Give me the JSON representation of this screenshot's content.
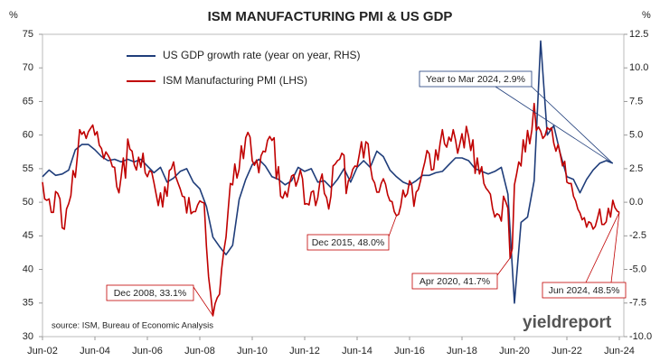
{
  "chart_data": {
    "type": "line",
    "title": "ISM MANUFACTURING PMI & US GDP",
    "ylabel": "%",
    "y2label": "%",
    "source": "source: ISM, Bureau of Economic Analysis",
    "logo": "yieldreport",
    "x": [
      "Jun-02",
      "Jul-02",
      "Aug-02",
      "Sep-02",
      "Oct-02",
      "Nov-02",
      "Dec-02",
      "Jan-03",
      "Feb-03",
      "Mar-03",
      "Apr-03",
      "May-03",
      "Jun-03",
      "Jul-03",
      "Aug-03",
      "Sep-03",
      "Oct-03",
      "Nov-03",
      "Dec-03",
      "Jan-04",
      "Feb-04",
      "Mar-04",
      "Apr-04",
      "May-04",
      "Jun-04",
      "Jul-04",
      "Aug-04",
      "Sep-04",
      "Oct-04",
      "Nov-04",
      "Dec-04",
      "Jan-05",
      "Feb-05",
      "Mar-05",
      "Apr-05",
      "May-05",
      "Jun-05",
      "Jul-05",
      "Aug-05",
      "Sep-05",
      "Oct-05",
      "Nov-05",
      "Dec-05",
      "Jan-06",
      "Feb-06",
      "Mar-06",
      "Apr-06",
      "May-06",
      "Jun-06",
      "Jul-06",
      "Aug-06",
      "Sep-06",
      "Oct-06",
      "Nov-06",
      "Dec-06",
      "Jan-07",
      "Feb-07",
      "Mar-07",
      "Apr-07",
      "May-07",
      "Jun-07",
      "Jul-07",
      "Aug-07",
      "Sep-07",
      "Oct-07",
      "Nov-07",
      "Dec-07",
      "Jan-08",
      "Feb-08",
      "Mar-08",
      "Apr-08",
      "May-08",
      "Jun-08",
      "Jul-08",
      "Aug-08",
      "Sep-08",
      "Oct-08",
      "Nov-08",
      "Dec-08",
      "Jan-09",
      "Feb-09",
      "Mar-09",
      "Apr-09",
      "May-09",
      "Jun-09",
      "Jul-09",
      "Aug-09",
      "Sep-09",
      "Oct-09",
      "Nov-09",
      "Dec-09",
      "Jan-10",
      "Feb-10",
      "Mar-10",
      "Apr-10",
      "May-10",
      "Jun-10",
      "Jul-10",
      "Aug-10",
      "Sep-10",
      "Oct-10",
      "Nov-10",
      "Dec-10",
      "Jan-11",
      "Feb-11",
      "Mar-11",
      "Apr-11",
      "May-11",
      "Jun-11",
      "Jul-11",
      "Aug-11",
      "Sep-11",
      "Oct-11",
      "Nov-11",
      "Dec-11",
      "Jan-12",
      "Feb-12",
      "Mar-12",
      "Apr-12",
      "May-12",
      "Jun-12",
      "Jul-12",
      "Aug-12",
      "Sep-12",
      "Oct-12",
      "Nov-12",
      "Dec-12",
      "Jan-13",
      "Feb-13",
      "Mar-13",
      "Apr-13",
      "May-13",
      "Jun-13",
      "Jul-13",
      "Aug-13",
      "Sep-13",
      "Oct-13",
      "Nov-13",
      "Dec-13",
      "Jan-14",
      "Feb-14",
      "Mar-14",
      "Apr-14",
      "May-14",
      "Jun-14",
      "Jul-14",
      "Aug-14",
      "Sep-14",
      "Oct-14",
      "Nov-14",
      "Dec-14",
      "Jan-15",
      "Feb-15",
      "Mar-15",
      "Apr-15",
      "May-15",
      "Jun-15",
      "Jul-15",
      "Aug-15",
      "Sep-15",
      "Oct-15",
      "Nov-15",
      "Dec-15",
      "Jan-16",
      "Feb-16",
      "Mar-16",
      "Apr-16",
      "May-16",
      "Jun-16",
      "Jul-16",
      "Aug-16",
      "Sep-16",
      "Oct-16",
      "Nov-16",
      "Dec-16",
      "Jan-17",
      "Feb-17",
      "Mar-17",
      "Apr-17",
      "May-17",
      "Jun-17",
      "Jul-17",
      "Aug-17",
      "Sep-17",
      "Oct-17",
      "Nov-17",
      "Dec-17",
      "Jan-18",
      "Feb-18",
      "Mar-18",
      "Apr-18",
      "May-18",
      "Jun-18",
      "Jul-18",
      "Aug-18",
      "Sep-18",
      "Oct-18",
      "Nov-18",
      "Dec-18",
      "Jan-19",
      "Feb-19",
      "Mar-19",
      "Apr-19",
      "May-19",
      "Jun-19",
      "Jul-19",
      "Aug-19",
      "Sep-19",
      "Oct-19",
      "Nov-19",
      "Dec-19",
      "Jan-20",
      "Feb-20",
      "Mar-20",
      "Apr-20",
      "May-20",
      "Jun-20",
      "Jul-20",
      "Aug-20",
      "Sep-20",
      "Oct-20",
      "Nov-20",
      "Dec-20",
      "Jan-21",
      "Feb-21",
      "Mar-21",
      "Apr-21",
      "May-21",
      "Jun-21",
      "Jul-21",
      "Aug-21",
      "Sep-21",
      "Oct-21",
      "Nov-21",
      "Dec-21",
      "Jan-22",
      "Feb-22",
      "Mar-22",
      "Apr-22",
      "May-22",
      "Jun-22",
      "Jul-22",
      "Aug-22",
      "Sep-22",
      "Oct-22",
      "Nov-22",
      "Dec-22",
      "Jan-23",
      "Feb-23",
      "Mar-23",
      "Apr-23",
      "May-23",
      "Jun-23",
      "Jul-23",
      "Aug-23",
      "Sep-23",
      "Oct-23",
      "Nov-23",
      "Dec-23",
      "Jan-24",
      "Feb-24",
      "Mar-24",
      "Apr-24",
      "May-24",
      "Jun-24"
    ],
    "series": [
      {
        "name": "US GDP growth rate (year on year, RHS)",
        "color": "#1f3d7a",
        "axis": "y2",
        "x": [
          "Jun-02",
          "Sep-02",
          "Dec-02",
          "Mar-03",
          "Jun-03",
          "Sep-03",
          "Dec-03",
          "Mar-04",
          "Jun-04",
          "Sep-04",
          "Dec-04",
          "Mar-05",
          "Jun-05",
          "Sep-05",
          "Dec-05",
          "Mar-06",
          "Jun-06",
          "Sep-06",
          "Dec-06",
          "Mar-07",
          "Jun-07",
          "Sep-07",
          "Dec-07",
          "Mar-08",
          "Jun-08",
          "Sep-08",
          "Dec-08",
          "Mar-09",
          "Jun-09",
          "Sep-09",
          "Dec-09",
          "Mar-10",
          "Jun-10",
          "Sep-10",
          "Dec-10",
          "Mar-11",
          "Jun-11",
          "Sep-11",
          "Dec-11",
          "Mar-12",
          "Jun-12",
          "Sep-12",
          "Dec-12",
          "Mar-13",
          "Jun-13",
          "Sep-13",
          "Dec-13",
          "Mar-14",
          "Jun-14",
          "Sep-14",
          "Dec-14",
          "Mar-15",
          "Jun-15",
          "Sep-15",
          "Dec-15",
          "Mar-16",
          "Jun-16",
          "Sep-16",
          "Dec-16",
          "Mar-17",
          "Jun-17",
          "Sep-17",
          "Dec-17",
          "Mar-18",
          "Jun-18",
          "Sep-18",
          "Dec-18",
          "Mar-19",
          "Jun-19",
          "Sep-19",
          "Dec-19",
          "Mar-20",
          "Jun-20",
          "Sep-20",
          "Dec-20",
          "Mar-21",
          "Jun-21",
          "Sep-21",
          "Dec-21",
          "Mar-22",
          "Jun-22",
          "Sep-22",
          "Dec-22",
          "Mar-23",
          "Jun-23",
          "Sep-23",
          "Dec-23",
          "Mar-24"
        ],
        "values": [
          1.9,
          2.4,
          2.0,
          2.1,
          2.4,
          3.9,
          4.3,
          4.3,
          3.9,
          3.4,
          3.1,
          3.2,
          3.0,
          3.2,
          3.0,
          3.2,
          2.7,
          2.2,
          2.6,
          1.5,
          1.8,
          2.3,
          2.5,
          1.5,
          1.0,
          -0.3,
          -2.6,
          -3.3,
          -3.9,
          -3.2,
          0.2,
          1.7,
          2.8,
          3.2,
          2.7,
          1.9,
          1.7,
          1.3,
          1.6,
          2.6,
          2.3,
          2.5,
          1.5,
          1.6,
          1.1,
          1.7,
          2.5,
          1.5,
          2.6,
          3.1,
          2.6,
          3.8,
          3.4,
          2.4,
          1.9,
          1.5,
          1.3,
          1.6,
          2.0,
          2.0,
          2.2,
          2.3,
          2.8,
          3.3,
          3.3,
          3.1,
          2.5,
          2.3,
          2.1,
          2.3,
          2.6,
          0.6,
          -7.5,
          -1.5,
          -1.1,
          1.6,
          12.0,
          5.0,
          5.7,
          3.6,
          1.9,
          1.7,
          0.7,
          1.7,
          2.4,
          2.9,
          3.1,
          2.9
        ]
      },
      {
        "name": "ISM Manufacturing PMI (LHS)",
        "color": "#c00000",
        "values": [
          53.0,
          50.5,
          50.3,
          50.5,
          48.5,
          48.5,
          51.6,
          51.3,
          50.5,
          46.2,
          46.0,
          49.0,
          49.8,
          51.0,
          54.7,
          53.7,
          57.0,
          60.8,
          60.1,
          60.5,
          59.5,
          60.5,
          61.0,
          61.5,
          60.0,
          60.5,
          58.5,
          58.0,
          56.5,
          57.5,
          57.0,
          56.4,
          55.3,
          55.2,
          52.3,
          51.4,
          53.8,
          56.6,
          53.6,
          59.4,
          57.9,
          57.6,
          55.6,
          54.8,
          56.7,
          55.2,
          57.3,
          54.4,
          53.8,
          54.7,
          54.5,
          52.9,
          51.2,
          49.5,
          51.4,
          49.3,
          52.3,
          50.9,
          54.7,
          55.0,
          56.0,
          53.8,
          52.9,
          52.0,
          50.9,
          50.8,
          48.4,
          50.7,
          48.3,
          48.6,
          48.6,
          49.6,
          50.2,
          50.0,
          49.9,
          43.5,
          38.9,
          36.2,
          33.1,
          34.9,
          35.8,
          36.3,
          40.1,
          42.8,
          44.8,
          48.9,
          52.8,
          52.6,
          55.7,
          53.6,
          54.9,
          58.4,
          56.5,
          59.6,
          60.4,
          59.7,
          56.2,
          55.5,
          56.3,
          54.4,
          56.9,
          57.6,
          57.5,
          59.2,
          59.8,
          59.2,
          59.6,
          53.5,
          55.3,
          50.9,
          50.6,
          51.6,
          50.8,
          52.7,
          53.9,
          54.1,
          52.4,
          53.4,
          54.8,
          53.5,
          49.7,
          49.8,
          49.6,
          51.5,
          51.7,
          49.5,
          50.7,
          53.1,
          54.2,
          51.3,
          50.7,
          49.0,
          50.9,
          55.4,
          55.7,
          56.2,
          56.4,
          57.3,
          57.0,
          51.3,
          53.2,
          53.7,
          54.9,
          55.4,
          55.3,
          57.1,
          59.0,
          56.6,
          59.0,
          58.7,
          55.5,
          53.5,
          52.9,
          51.5,
          51.5,
          52.8,
          53.5,
          52.7,
          51.1,
          50.2,
          50.1,
          48.6,
          48.0,
          48.2,
          49.5,
          51.8,
          50.8,
          51.3,
          53.2,
          52.6,
          49.4,
          51.5,
          51.9,
          53.2,
          54.7,
          56.0,
          57.7,
          57.2,
          54.8,
          54.9,
          57.8,
          56.3,
          58.8,
          60.8,
          58.7,
          58.2,
          59.7,
          59.1,
          60.8,
          59.3,
          57.3,
          58.7,
          60.2,
          58.1,
          61.3,
          59.8,
          57.7,
          59.3,
          54.3,
          56.6,
          54.2,
          55.3,
          52.8,
          52.1,
          51.7,
          51.2,
          49.1,
          47.8,
          48.3,
          48.1,
          47.2,
          50.9,
          50.1,
          49.1,
          41.7,
          43.1,
          52.6,
          54.2,
          56.0,
          55.4,
          59.3,
          57.5,
          60.7,
          58.7,
          60.8,
          64.7,
          60.7,
          61.2,
          60.6,
          59.5,
          59.9,
          61.1,
          60.8,
          61.1,
          58.8,
          57.6,
          58.6,
          57.1,
          55.4,
          56.1,
          53.0,
          52.8,
          52.8,
          50.9,
          50.2,
          49.0,
          48.4,
          47.4,
          47.7,
          46.3,
          47.1,
          46.9,
          46.0,
          46.4,
          47.6,
          49.0,
          46.7,
          46.7,
          47.1,
          49.1,
          47.8,
          50.3,
          49.2,
          48.7,
          48.5
        ]
      }
    ],
    "xticks": [
      "Jun-02",
      "Jun-04",
      "Jun-06",
      "Jun-08",
      "Jun-10",
      "Jun-12",
      "Jun-14",
      "Jun-16",
      "Jun-18",
      "Jun-20",
      "Jun-22",
      "Jun-24"
    ],
    "ylim": [
      30,
      75
    ],
    "yticks": [
      30,
      35,
      40,
      45,
      50,
      55,
      60,
      65,
      70,
      75
    ],
    "y2lim": [
      -10,
      12.5
    ],
    "y2ticks": [
      {
        "value": -10,
        "label": "-10.0"
      },
      -7.5,
      {
        "value": -5,
        "label": "-5.0"
      },
      -2.5,
      {
        "value": 0,
        "label": "0.0"
      },
      2.5,
      {
        "value": 5,
        "label": "5.0"
      },
      7.5,
      {
        "value": 10,
        "label": "10.0"
      },
      12.5
    ],
    "annotations": [
      "Dec 2008, 33.1%",
      "Dec 2015, 48.0%",
      "Apr 2020, 41.7%",
      "Jun 2024, 48.5%",
      "Year to Mar 2024, 2.9%"
    ],
    "grid": false
  }
}
